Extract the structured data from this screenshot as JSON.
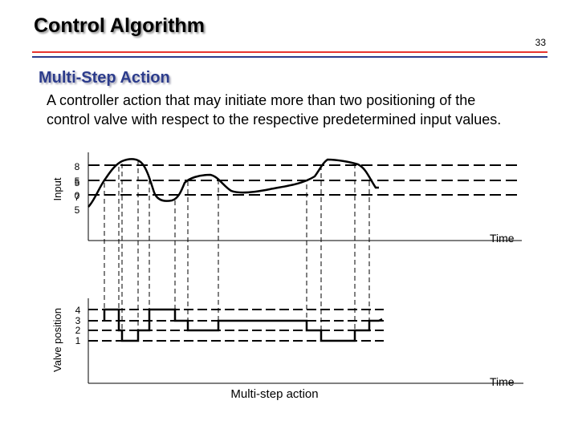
{
  "header": {
    "title": "Control Algorithm",
    "page_number": "33"
  },
  "section": {
    "subtitle": "Multi-Step Action",
    "definition": "A controller action that may initiate more than two positioning of the control valve with respect to the respective predetermined input values."
  },
  "diagram": {
    "input_axis": {
      "ylabel": "Input",
      "xlabel": "Time",
      "level_labels": [
        "8",
        "5",
        "5",
        "0",
        "7",
        "5"
      ]
    },
    "valve_axis": {
      "ylabel": "Valve position",
      "xlabel": "Time",
      "level_labels": [
        "4",
        "3",
        "2",
        "1"
      ]
    },
    "caption": "Multi-step action"
  }
}
